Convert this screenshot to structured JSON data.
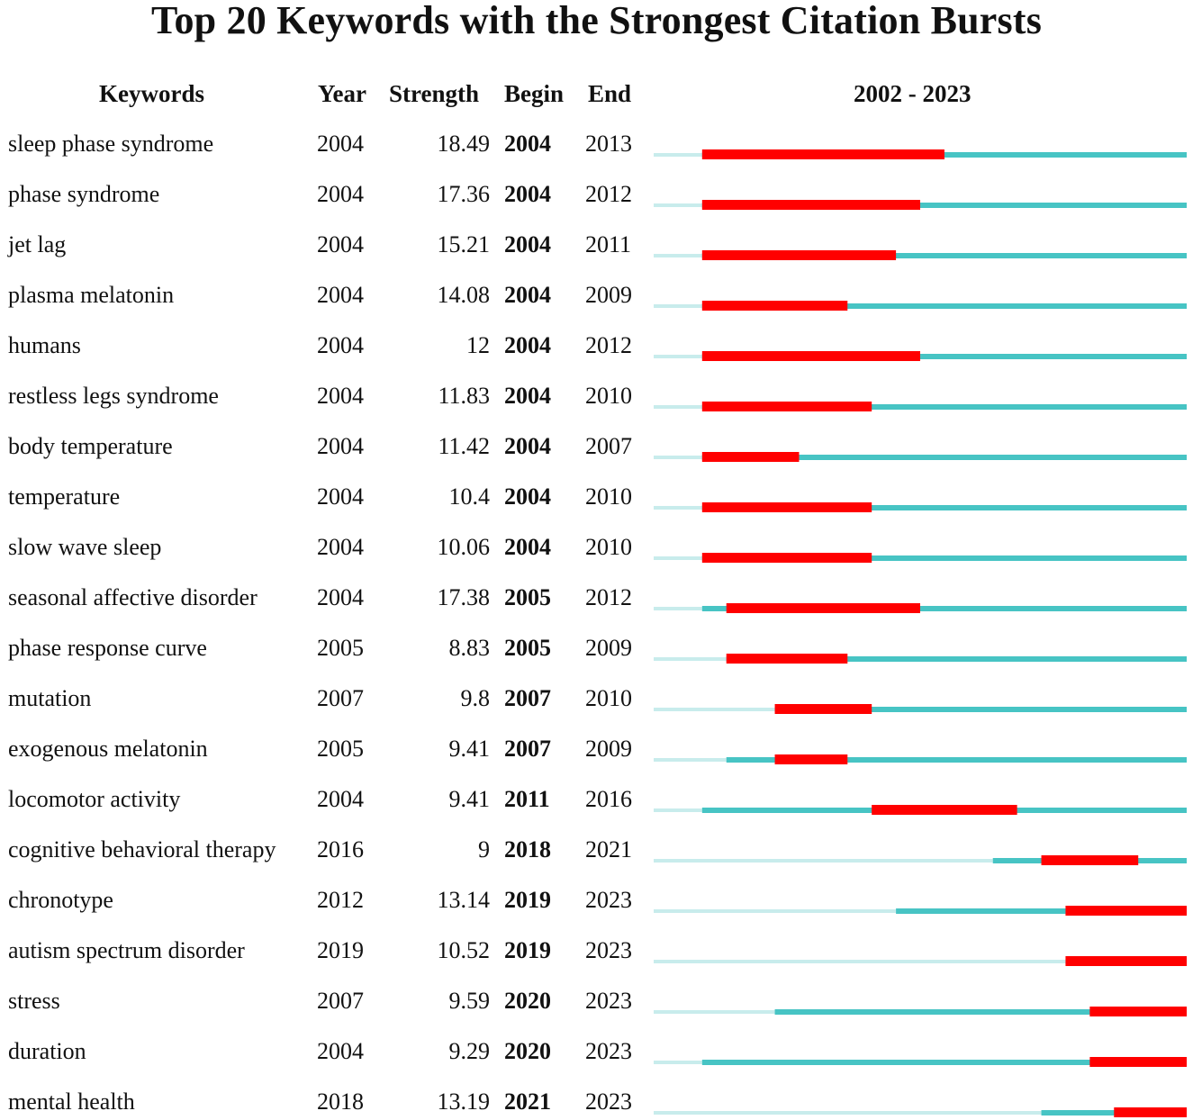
{
  "chart_data": {
    "type": "table",
    "title": "Top 20 Keywords with the Strongest Citation Bursts",
    "columns": [
      "Keywords",
      "Year",
      "Strength",
      "Begin",
      "End",
      "2002 - 2023"
    ],
    "timeline": {
      "start": 2002,
      "end": 2023,
      "label": "2002 - 2023"
    },
    "colors": {
      "before": "#c8ecec",
      "active": "#47c4c4",
      "burst": "#ff0000"
    },
    "rows": [
      {
        "keyword": "sleep phase syndrome",
        "year": "2004",
        "strength": "18.49",
        "begin": "2004",
        "end": "2013"
      },
      {
        "keyword": "phase syndrome",
        "year": "2004",
        "strength": "17.36",
        "begin": "2004",
        "end": "2012"
      },
      {
        "keyword": "jet lag",
        "year": "2004",
        "strength": "15.21",
        "begin": "2004",
        "end": "2011"
      },
      {
        "keyword": "plasma melatonin",
        "year": "2004",
        "strength": "14.08",
        "begin": "2004",
        "end": "2009"
      },
      {
        "keyword": "humans",
        "year": "2004",
        "strength": "12",
        "begin": "2004",
        "end": "2012"
      },
      {
        "keyword": "restless legs syndrome",
        "year": "2004",
        "strength": "11.83",
        "begin": "2004",
        "end": "2010"
      },
      {
        "keyword": "body temperature",
        "year": "2004",
        "strength": "11.42",
        "begin": "2004",
        "end": "2007"
      },
      {
        "keyword": "temperature",
        "year": "2004",
        "strength": "10.4",
        "begin": "2004",
        "end": "2010"
      },
      {
        "keyword": "slow wave sleep",
        "year": "2004",
        "strength": "10.06",
        "begin": "2004",
        "end": "2010"
      },
      {
        "keyword": "seasonal affective disorder",
        "year": "2004",
        "strength": "17.38",
        "begin": "2005",
        "end": "2012"
      },
      {
        "keyword": "phase response curve",
        "year": "2005",
        "strength": "8.83",
        "begin": "2005",
        "end": "2009"
      },
      {
        "keyword": "mutation",
        "year": "2007",
        "strength": "9.8",
        "begin": "2007",
        "end": "2010"
      },
      {
        "keyword": "exogenous melatonin",
        "year": "2005",
        "strength": "9.41",
        "begin": "2007",
        "end": "2009"
      },
      {
        "keyword": "locomotor activity",
        "year": "2004",
        "strength": "9.41",
        "begin": "2011",
        "end": "2016"
      },
      {
        "keyword": "cognitive behavioral therapy",
        "year": "2016",
        "strength": "9",
        "begin": "2018",
        "end": "2021"
      },
      {
        "keyword": "chronotype",
        "year": "2012",
        "strength": "13.14",
        "begin": "2019",
        "end": "2023"
      },
      {
        "keyword": "autism spectrum disorder",
        "year": "2019",
        "strength": "10.52",
        "begin": "2019",
        "end": "2023"
      },
      {
        "keyword": "stress",
        "year": "2007",
        "strength": "9.59",
        "begin": "2020",
        "end": "2023"
      },
      {
        "keyword": "duration",
        "year": "2004",
        "strength": "9.29",
        "begin": "2020",
        "end": "2023"
      },
      {
        "keyword": "mental health",
        "year": "2018",
        "strength": "13.19",
        "begin": "2021",
        "end": "2023"
      }
    ]
  }
}
